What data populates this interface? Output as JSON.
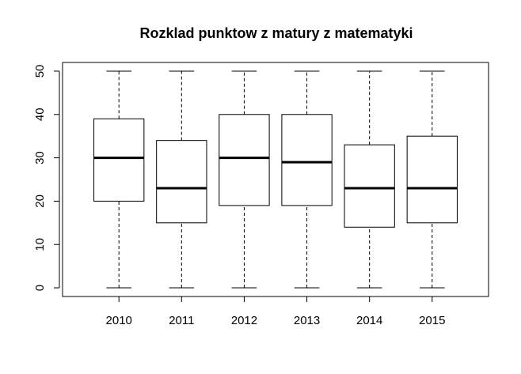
{
  "chart_data": {
    "type": "boxplot",
    "title": "Rozklad punktow z matury z matematyki",
    "xlabel": "",
    "ylabel": "",
    "ylim": [
      -2,
      52
    ],
    "yticks": [
      0,
      10,
      20,
      30,
      40,
      50
    ],
    "grid": false,
    "categories": [
      "2010",
      "2011",
      "2012",
      "2013",
      "2014",
      "2015"
    ],
    "boxes": [
      {
        "min": 0,
        "q1": 20,
        "median": 30,
        "q3": 39,
        "max": 50
      },
      {
        "min": 0,
        "q1": 15,
        "median": 23,
        "q3": 34,
        "max": 50
      },
      {
        "min": 0,
        "q1": 19,
        "median": 30,
        "q3": 40,
        "max": 50
      },
      {
        "min": 0,
        "q1": 19,
        "median": 29,
        "q3": 40,
        "max": 50
      },
      {
        "min": 0,
        "q1": 14,
        "median": 23,
        "q3": 33,
        "max": 50
      },
      {
        "min": 0,
        "q1": 15,
        "median": 23,
        "q3": 35,
        "max": 50
      }
    ]
  }
}
